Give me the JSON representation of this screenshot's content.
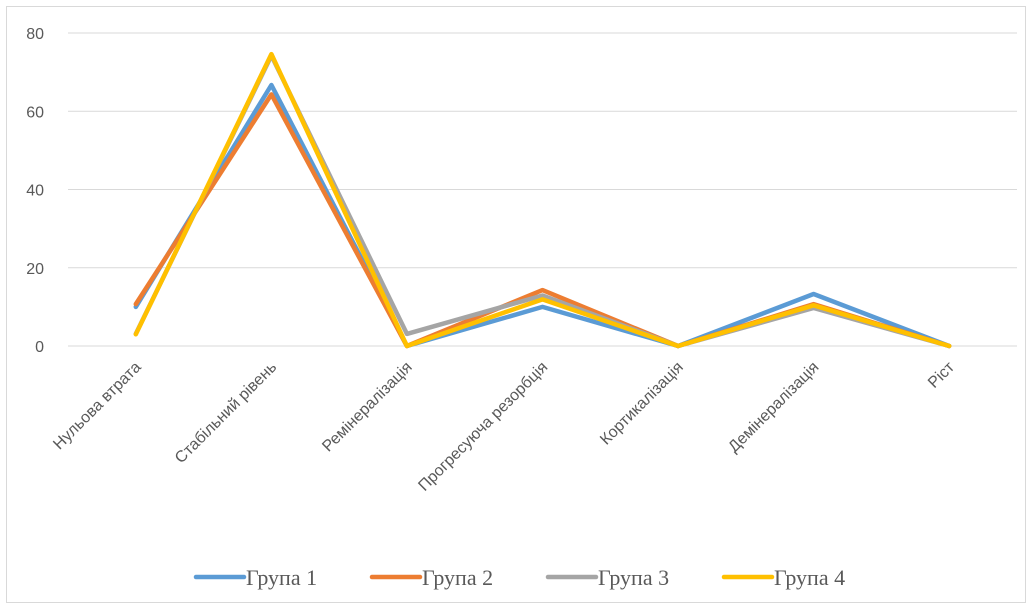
{
  "chart_data": {
    "type": "line",
    "title": "",
    "xlabel": "",
    "ylabel": "",
    "categories": [
      "Нульова втрата",
      "Стабільний рівень",
      "Ремінералізація",
      "Прогресуюча резорбція",
      "Кортикалізація",
      "Демінералізація",
      "Ріст"
    ],
    "ylim": [
      0,
      80
    ],
    "yticks": [
      "0",
      "20",
      "40",
      "60",
      "80"
    ],
    "grid": true,
    "legend_position": "bottom",
    "series": [
      {
        "name": "Група 1",
        "color": "#5B9BD5",
        "values": [
          10,
          66.7,
          0,
          10,
          0,
          13.3,
          0
        ]
      },
      {
        "name": "Група 2",
        "color": "#ED7D31",
        "values": [
          10.7,
          64.3,
          0,
          14.3,
          0,
          10.7,
          0
        ]
      },
      {
        "name": "Група 3",
        "color": "#A5A5A5",
        "values": [
          3.1,
          74.2,
          3.1,
          12.9,
          0,
          9.7,
          0
        ]
      },
      {
        "name": "Група 4",
        "color": "#FFC000",
        "values": [
          3,
          74.6,
          0,
          11.9,
          0,
          10.4,
          0
        ]
      }
    ]
  }
}
